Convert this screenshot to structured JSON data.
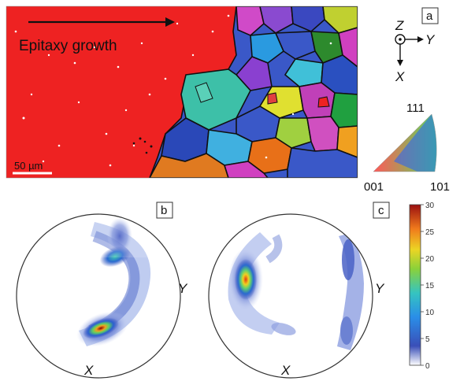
{
  "ebsd_map": {
    "panel_label": "a",
    "arrow_text": "Epitaxy growth",
    "scale_bar": "50 µm"
  },
  "axes_triad": {
    "z": "Z",
    "y": "Y",
    "x": "X"
  },
  "ipf_key": {
    "top": "111",
    "bottom_left": "001",
    "bottom_right": "101"
  },
  "pole_figure_b": {
    "panel_label": "b",
    "y_label": "Y",
    "x_label": "X"
  },
  "pole_figure_c": {
    "panel_label": "c",
    "y_label": "Y",
    "x_label": "X"
  },
  "colorbar": {
    "ticks": [
      "30",
      "25",
      "20",
      "15",
      "10",
      "5",
      "0"
    ],
    "values": [
      30,
      25,
      20,
      15,
      10,
      5,
      0
    ]
  }
}
